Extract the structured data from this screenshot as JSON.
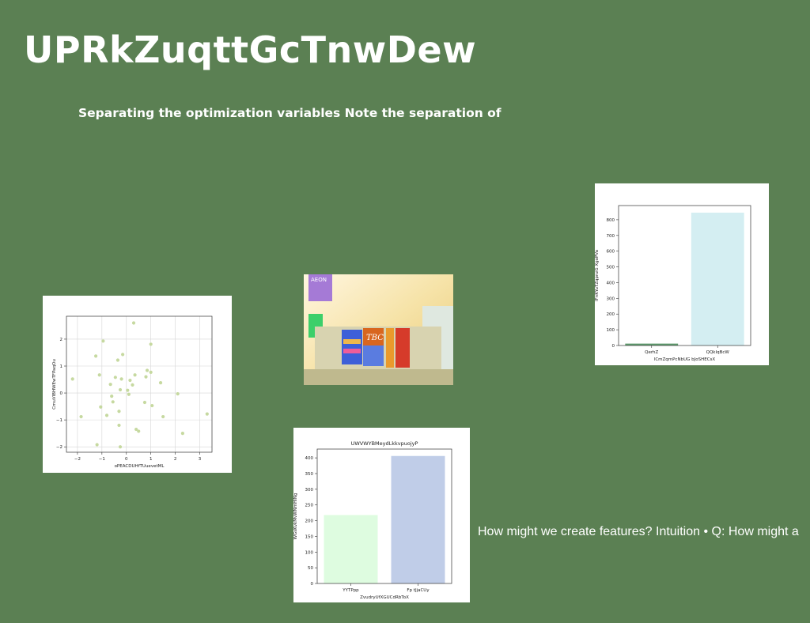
{
  "slide": {
    "title": "UPRkZuqttGcTnwDew",
    "subtitle": "Separating the optimization variables Note the separation of",
    "caption": "How might we create features? Intuition • Q: How might a"
  },
  "photo": {
    "signs": [
      "AEON",
      "TBC"
    ]
  },
  "chart_data": [
    {
      "type": "bar",
      "title": "",
      "xlabel": "lCmZqmPcNbUG bJoSHECsX",
      "ylabel": "lFnKYuTZqpnzG XgoPVa",
      "categories": [
        "QerhZ",
        "QQkIqBcW"
      ],
      "values": [
        12,
        845
      ],
      "colors": [
        "#5f9b6e",
        "#d4eef2"
      ],
      "ylim": [
        0,
        890
      ],
      "yticks": [
        0,
        100,
        200,
        300,
        400,
        500,
        600,
        700,
        800
      ],
      "grid": false
    },
    {
      "type": "scatter",
      "title": "",
      "xlabel": "oPEACDUHfTUuevetML",
      "ylabel": "CmuVIBHWEwTFPaqOu",
      "xlim": [
        -2.45,
        3.5
      ],
      "ylim": [
        -2.2,
        2.85
      ],
      "xticks": [
        -2,
        -1,
        0,
        1,
        2,
        3
      ],
      "yticks": [
        -2,
        -1,
        0,
        1,
        2
      ],
      "grid": true,
      "color": "#c6d9a0",
      "points": [
        [
          -2.2,
          0.52
        ],
        [
          -1.85,
          -0.88
        ],
        [
          -1.25,
          1.37
        ],
        [
          -1.1,
          0.67
        ],
        [
          -1.05,
          -0.52
        ],
        [
          -0.95,
          1.93
        ],
        [
          -0.8,
          -0.83
        ],
        [
          -0.65,
          0.32
        ],
        [
          -0.6,
          -0.12
        ],
        [
          -0.55,
          -0.33
        ],
        [
          -0.45,
          0.58
        ],
        [
          -0.35,
          1.22
        ],
        [
          -0.3,
          -0.68
        ],
        [
          -0.3,
          -1.2
        ],
        [
          -0.25,
          0.12
        ],
        [
          -0.2,
          0.52
        ],
        [
          -0.15,
          1.43
        ],
        [
          0.05,
          0.1
        ],
        [
          0.1,
          -0.05
        ],
        [
          0.15,
          0.47
        ],
        [
          0.25,
          0.3
        ],
        [
          0.3,
          2.6
        ],
        [
          0.35,
          0.67
        ],
        [
          0.4,
          -1.35
        ],
        [
          0.5,
          -1.42
        ],
        [
          0.8,
          0.6
        ],
        [
          0.85,
          0.84
        ],
        [
          0.75,
          -0.35
        ],
        [
          1.0,
          0.77
        ],
        [
          1.0,
          1.81
        ],
        [
          1.05,
          -0.47
        ],
        [
          1.4,
          0.38
        ],
        [
          1.5,
          -0.88
        ],
        [
          2.1,
          -0.03
        ],
        [
          2.3,
          -1.5
        ],
        [
          3.3,
          -0.78
        ],
        [
          -0.25,
          -2.0
        ],
        [
          -1.2,
          -1.92
        ]
      ]
    },
    {
      "type": "bar",
      "title": "UWVWYBMeydLkkvpuojyP",
      "xlabel": "ZvudryUfXGUCdRbToX",
      "ylabel": "WGsKvkMvWNmHiNg",
      "categories": [
        "YYTPpp",
        "Fp tJjaCUy"
      ],
      "values": [
        218,
        406
      ],
      "colors": [
        "#defce0",
        "#c0cde8"
      ],
      "ylim": [
        0,
        428
      ],
      "yticks": [
        0,
        50,
        100,
        150,
        200,
        250,
        300,
        350,
        400
      ],
      "grid": false
    }
  ]
}
